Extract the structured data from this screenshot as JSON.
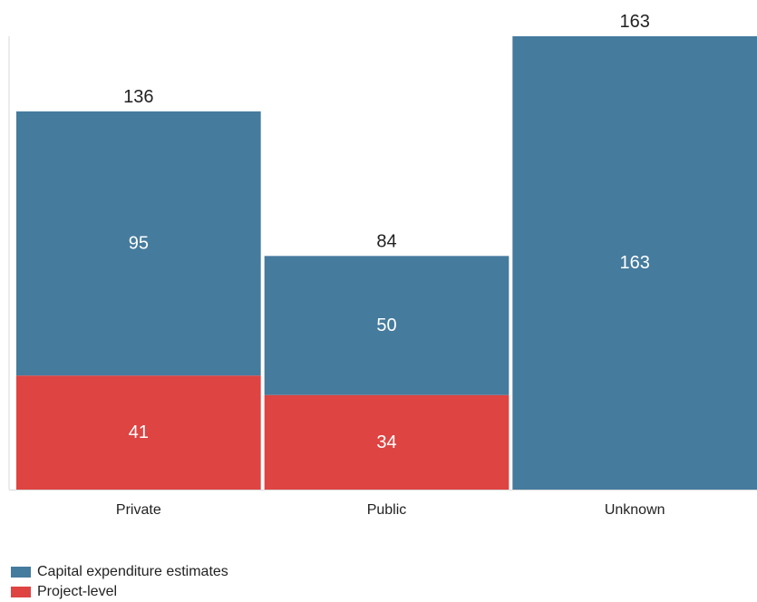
{
  "chart_data": {
    "type": "bar",
    "stacked": true,
    "categories": [
      "Private",
      "Public",
      "Unknown"
    ],
    "series": [
      {
        "name": "Project-level",
        "color": "#dd4442",
        "values": [
          41,
          34,
          0
        ]
      },
      {
        "name": "Capital expenditure estimates",
        "color": "#457b9d",
        "values": [
          95,
          50,
          163
        ]
      }
    ],
    "totals": [
      136,
      84,
      163
    ],
    "title": "",
    "xlabel": "",
    "ylabel": "",
    "ylim": [
      0,
      163
    ],
    "grid": false,
    "legend_position": "bottom-left"
  },
  "legend": {
    "items": [
      {
        "label": "Capital expenditure estimates",
        "color": "#457b9d"
      },
      {
        "label": "Project-level",
        "color": "#dd4442"
      }
    ]
  }
}
